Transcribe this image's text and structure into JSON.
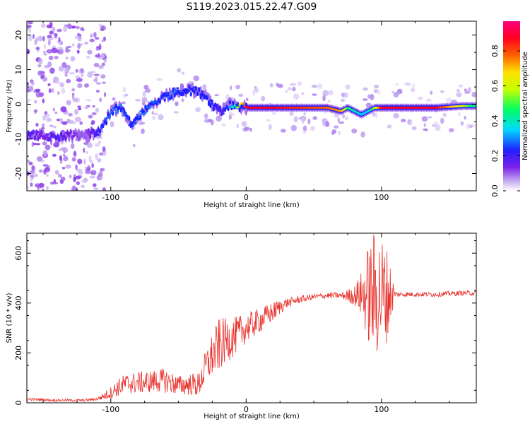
{
  "title": "S119.2023.015.22.47.G09",
  "chart_data": [
    {
      "type": "heatmap",
      "xlabel": "Height of straight line (km)",
      "ylabel": "Frequency (Hz)",
      "xlim": [
        -162,
        170
      ],
      "ylim": [
        -25,
        24
      ],
      "xticks": [
        -100,
        0,
        100
      ],
      "yticks": [
        -20,
        -10,
        0,
        10,
        20
      ],
      "colorbar": {
        "label": "Normalized spectral amplitude",
        "range": [
          0,
          0.97
        ],
        "ticks": [
          0.0,
          0.2,
          0.4,
          0.6,
          0.8
        ],
        "colormap": [
          "#ffffff",
          "#c2a6f0",
          "#7a20e8",
          "#2020ff",
          "#00d8ff",
          "#00ff60",
          "#c8ff00",
          "#ffe000",
          "#ff6000",
          "#ff0020",
          "#ff0080"
        ]
      },
      "ridge": {
        "x": [
          -162,
          -150,
          -140,
          -130,
          -120,
          -108,
          -100,
          -92,
          -85,
          -78,
          -70,
          -62,
          -55,
          -48,
          -40,
          -32,
          -25,
          -18,
          -12,
          -5,
          0,
          20,
          40,
          60,
          70,
          75,
          80,
          85,
          90,
          95,
          100,
          120,
          140,
          160,
          170
        ],
        "y": [
          -9,
          -9,
          -10,
          -9,
          -9,
          -8,
          -2,
          -1,
          -6,
          -3,
          0,
          2,
          3,
          4,
          4,
          3,
          0,
          -2,
          0,
          -0.5,
          -1,
          -1,
          -1,
          -1,
          -2,
          -1,
          -2,
          -3,
          -2,
          -1,
          -1,
          -1,
          -1,
          -0.5,
          -0.5
        ],
        "amplitude": [
          0.25,
          0.2,
          0.25,
          0.2,
          0.15,
          0.3,
          0.35,
          0.35,
          0.3,
          0.35,
          0.35,
          0.3,
          0.35,
          0.3,
          0.3,
          0.3,
          0.3,
          0.25,
          0.35,
          0.6,
          0.9,
          0.9,
          0.85,
          0.8,
          0.75,
          0.5,
          0.45,
          0.4,
          0.4,
          0.6,
          0.9,
          0.9,
          0.9,
          0.6,
          0.45
        ]
      }
    },
    {
      "type": "line",
      "xlabel": "Height of straight line (km)",
      "ylabel": "SNR (10 * v/v)",
      "xlim": [
        -162,
        170
      ],
      "ylim": [
        0,
        680
      ],
      "xticks": [
        -100,
        0,
        100
      ],
      "yticks": [
        0,
        200,
        400,
        600
      ],
      "color": "#e8302a",
      "x": [
        -162,
        -140,
        -120,
        -110,
        -100,
        -95,
        -90,
        -80,
        -70,
        -60,
        -50,
        -40,
        -35,
        -30,
        -25,
        -20,
        -15,
        -10,
        -5,
        0,
        10,
        20,
        25,
        30,
        40,
        50,
        60,
        70,
        80,
        85,
        90,
        95,
        100,
        105,
        110,
        120,
        140,
        160,
        170
      ],
      "y": [
        15,
        10,
        10,
        15,
        40,
        60,
        75,
        80,
        85,
        90,
        70,
        75,
        70,
        140,
        190,
        230,
        250,
        260,
        280,
        300,
        330,
        365,
        385,
        400,
        415,
        425,
        430,
        430,
        430,
        435,
        435,
        435,
        435,
        435,
        435,
        435,
        435,
        440,
        440
      ],
      "spread": [
        6,
        5,
        5,
        6,
        25,
        35,
        40,
        45,
        45,
        50,
        40,
        45,
        50,
        70,
        90,
        110,
        90,
        80,
        70,
        60,
        50,
        40,
        30,
        20,
        15,
        12,
        12,
        12,
        40,
        90,
        200,
        260,
        240,
        180,
        12,
        10,
        10,
        10,
        10
      ]
    }
  ]
}
